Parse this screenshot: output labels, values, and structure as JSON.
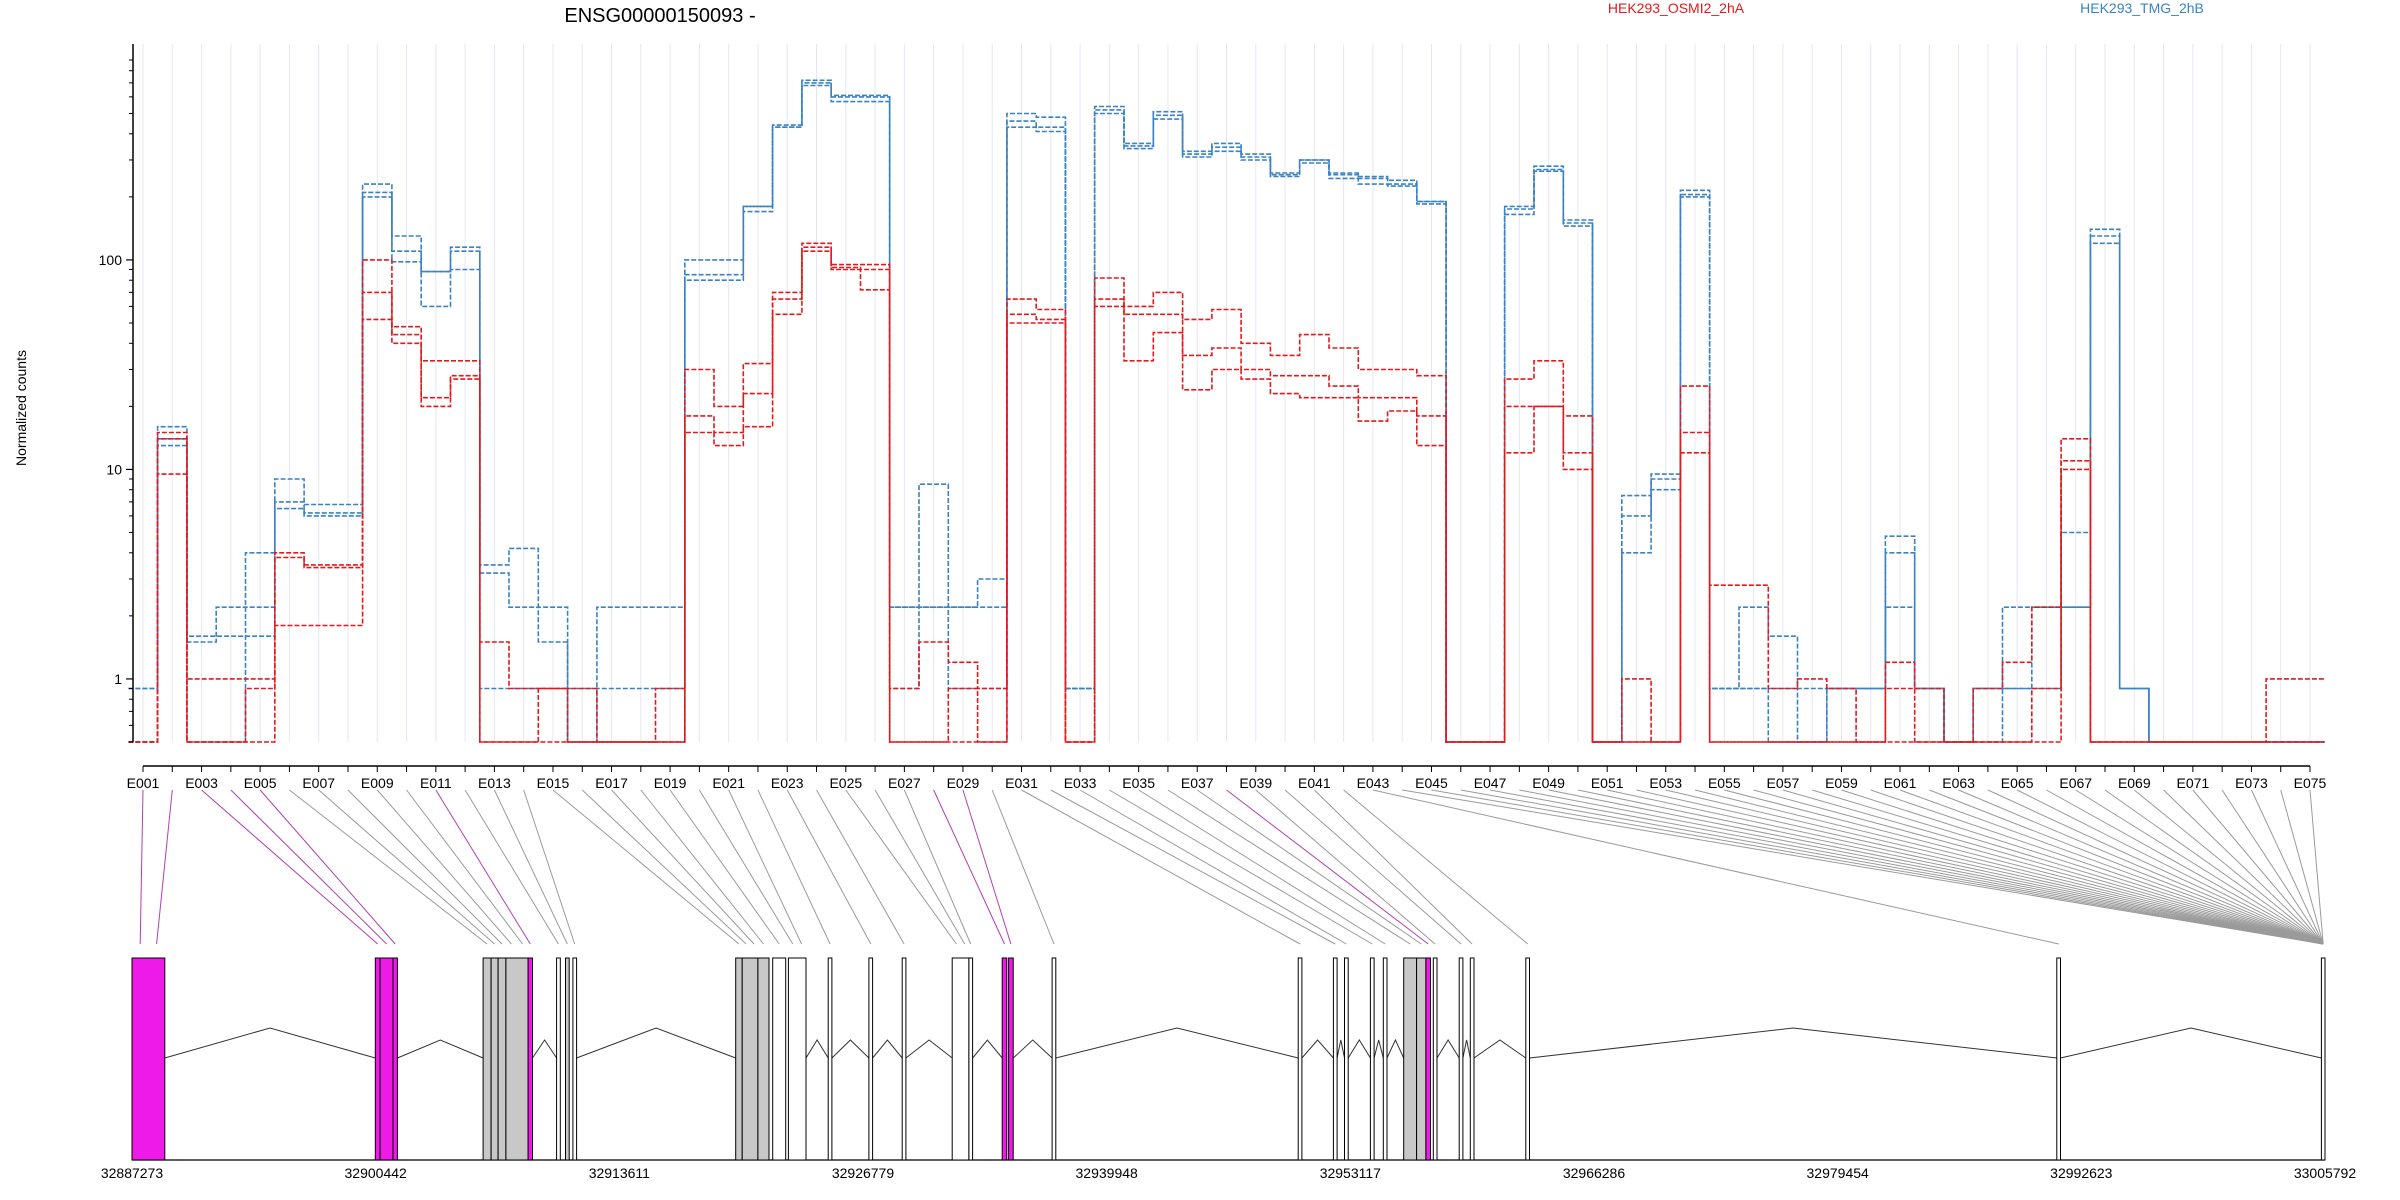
{
  "title": "ENSG00000150093 -",
  "ylabel": "Normalized counts",
  "legend": [
    {
      "name": "HEK293_OSMI2_2hA",
      "color": "#e31a1c"
    },
    {
      "name": "HEK293_TMG_2hB",
      "color": "#3a82c4"
    }
  ],
  "colors": {
    "exon_highlight": "#ee1be8",
    "exon_gray": "#c8c8c8",
    "connector_gray": "#9a9a9a",
    "connector_magenta": "#b040b0",
    "grid": "#e6e6f2"
  },
  "chart_data": {
    "type": "line",
    "title": "ENSG00000150093 -",
    "xlabel": "",
    "ylabel": "Normalized counts",
    "y_scale": "log",
    "ylim": [
      0.5,
      900
    ],
    "y_ticks": [
      1,
      10,
      100
    ],
    "y_tick_labels": [
      "1",
      "10",
      "100"
    ],
    "grid": "vertical, per exon",
    "legend_position": "top",
    "categories": [
      "E001",
      "E002",
      "E003",
      "E004",
      "E005",
      "E006",
      "E007",
      "E008",
      "E009",
      "E010",
      "E011",
      "E012",
      "E013",
      "E014",
      "E015",
      "E016",
      "E017",
      "E018",
      "E019",
      "E020",
      "E021",
      "E022",
      "E023",
      "E024",
      "E025",
      "E026",
      "E027",
      "E028",
      "E029",
      "E030",
      "E031",
      "E032",
      "E033",
      "E034",
      "E035",
      "E036",
      "E037",
      "E038",
      "E039",
      "E040",
      "E041",
      "E042",
      "E043",
      "E044",
      "E045",
      "E046",
      "E047",
      "E048",
      "E049",
      "E050",
      "E051",
      "E052",
      "E053",
      "E054",
      "E055",
      "E056",
      "E057",
      "E058",
      "E059",
      "E060",
      "E061",
      "E062",
      "E063",
      "E064",
      "E065",
      "E066",
      "E067",
      "E068",
      "E069",
      "E070",
      "E071",
      "E072",
      "E073",
      "E074",
      "E075"
    ],
    "x_tick_labels": [
      "E001",
      "E003",
      "E005",
      "E007",
      "E009",
      "E011",
      "E013",
      "E015",
      "E017",
      "E019",
      "E021",
      "E023",
      "E025",
      "E027",
      "E029",
      "E031",
      "E033",
      "E035",
      "E037",
      "E039",
      "E041",
      "E043",
      "E045",
      "E047",
      "E049",
      "E051",
      "E053",
      "E055",
      "E057",
      "E059",
      "E061",
      "E063",
      "E065",
      "E067",
      "E069",
      "E071",
      "E073",
      "E075"
    ],
    "series": [
      {
        "name": "HEK293_TMG_2hB",
        "color": "#3a82c4",
        "values": [
          0.9,
          14,
          1.5,
          2.2,
          2.2,
          6.5,
          6.2,
          6.2,
          230,
          98,
          88,
          115,
          3.2,
          2.2,
          2.2,
          0.9,
          0.9,
          0.9,
          0.9,
          100,
          100,
          180,
          430,
          720,
          600,
          600,
          2.2,
          2.2,
          2.2,
          3.0,
          500,
          480,
          0.9,
          540,
          360,
          510,
          330,
          360,
          320,
          260,
          300,
          260,
          250,
          240,
          190,
          0.5,
          0.5,
          180,
          280,
          150,
          0.5,
          7.5,
          9.5,
          215,
          0.9,
          0.9,
          0.9,
          0.9,
          0.9,
          0.9,
          4.8,
          0.9,
          0.5,
          0.9,
          2.2,
          2.2,
          5.0,
          140,
          0.9,
          0.5,
          0.5,
          0.5,
          0.5,
          0.5,
          0.5
        ]
      },
      {
        "name": "HEK293_TMG_2hB",
        "color": "#3a82c4",
        "values": [
          0.9,
          16,
          1.6,
          1.6,
          1.6,
          7.0,
          6.0,
          6.0,
          210,
          130,
          60,
          90,
          0.9,
          0.9,
          0.9,
          0.5,
          0.5,
          0.5,
          0.5,
          85,
          85,
          170,
          430,
          680,
          570,
          570,
          0.9,
          8.5,
          0.9,
          0.9,
          460,
          430,
          0.9,
          520,
          340,
          470,
          310,
          330,
          300,
          250,
          290,
          245,
          230,
          225,
          185,
          0.5,
          0.5,
          165,
          270,
          145,
          0.5,
          6.0,
          8.0,
          200,
          0.9,
          2.2,
          1.6,
          0.5,
          0.9,
          0.9,
          2.2,
          0.9,
          0.5,
          0.9,
          0.9,
          0.9,
          2.2,
          120,
          0.9,
          0.5,
          0.5,
          0.5,
          0.5,
          0.5,
          0.5
        ]
      },
      {
        "name": "HEK293_TMG_2hB",
        "color": "#3a82c4",
        "values": [
          0.5,
          13,
          0.5,
          0.5,
          4.0,
          9.0,
          6.8,
          6.8,
          200,
          110,
          88,
          110,
          3.5,
          4.2,
          1.5,
          0.5,
          2.2,
          2.2,
          2.2,
          80,
          80,
          180,
          440,
          700,
          610,
          610,
          2.2,
          2.2,
          2.2,
          2.2,
          430,
          410,
          0.9,
          500,
          350,
          490,
          320,
          345,
          310,
          255,
          300,
          255,
          245,
          230,
          190,
          0.5,
          0.5,
          175,
          265,
          155,
          0.5,
          4.0,
          9.0,
          205,
          0.9,
          0.9,
          0.5,
          0.5,
          0.9,
          0.9,
          4.0,
          0.9,
          0.5,
          0.5,
          0.9,
          2.2,
          2.2,
          130,
          0.9,
          0.5,
          0.5,
          0.5,
          0.5,
          0.5,
          0.5
        ]
      },
      {
        "name": "HEK293_OSMI2_2hA",
        "color": "#e31a1c",
        "values": [
          0.5,
          9.5,
          1.0,
          1.0,
          1.0,
          3.8,
          3.5,
          3.5,
          100,
          48,
          33,
          33,
          1.5,
          0.9,
          0.9,
          0.9,
          0.5,
          0.5,
          0.9,
          30,
          20,
          32,
          70,
          120,
          90,
          90,
          0.9,
          1.5,
          1.2,
          0.9,
          65,
          58,
          0.5,
          82,
          60,
          70,
          52,
          58,
          40,
          35,
          44,
          38,
          30,
          30,
          28,
          0.5,
          0.5,
          27,
          33,
          18,
          0.5,
          1.0,
          0.5,
          25,
          2.8,
          2.8,
          0.9,
          1.0,
          0.9,
          0.5,
          1.2,
          0.9,
          0.5,
          0.9,
          1.2,
          2.2,
          14,
          0.5,
          0.5,
          0.5,
          0.5,
          0.5,
          0.5,
          1.0,
          1.0
        ]
      },
      {
        "name": "HEK293_OSMI2_2hA",
        "color": "#e31a1c",
        "values": [
          0.5,
          15,
          0.5,
          0.5,
          0.9,
          4.0,
          3.4,
          3.4,
          70,
          40,
          22,
          27,
          0.5,
          0.5,
          0.9,
          0.5,
          0.5,
          0.5,
          0.5,
          18,
          15,
          23,
          55,
          110,
          95,
          95,
          0.5,
          0.5,
          0.9,
          0.5,
          55,
          52,
          0.5,
          65,
          55,
          55,
          35,
          38,
          30,
          28,
          28,
          25,
          22,
          22,
          18,
          0.5,
          0.5,
          12,
          20,
          12,
          0.5,
          0.5,
          0.5,
          15,
          0.5,
          0.5,
          0.5,
          0.5,
          0.5,
          0.5,
          0.9,
          0.5,
          0.5,
          0.5,
          0.5,
          0.9,
          11,
          0.5,
          0.5,
          0.5,
          0.5,
          0.5,
          0.5,
          0.5,
          0.5
        ]
      },
      {
        "name": "HEK293_OSMI2_2hA",
        "color": "#e31a1c",
        "values": [
          0.5,
          14,
          0.5,
          0.5,
          0.5,
          1.8,
          1.8,
          1.8,
          52,
          44,
          20,
          28,
          0.5,
          0.5,
          0.5,
          0.5,
          0.5,
          0.5,
          0.5,
          15,
          13,
          16,
          65,
          115,
          92,
          72,
          0.5,
          0.5,
          0.5,
          0.5,
          50,
          50,
          0.5,
          60,
          33,
          45,
          24,
          30,
          27,
          23,
          22,
          22,
          17,
          19,
          13,
          0.5,
          0.5,
          20,
          20,
          10,
          0.5,
          0.5,
          0.5,
          12,
          0.5,
          0.5,
          0.5,
          0.5,
          0.5,
          0.5,
          0.5,
          0.5,
          0.5,
          0.5,
          0.5,
          0.5,
          10,
          0.5,
          0.5,
          0.5,
          0.5,
          0.5,
          0.5,
          0.5,
          0.5
        ]
      }
    ]
  },
  "gene_model": {
    "coordinates": [
      "32887273",
      "32900442",
      "32913611",
      "32926779",
      "32939948",
      "32953117",
      "32966286",
      "32979454",
      "32992623",
      "33005792"
    ],
    "genomic_range": [
      32887273,
      33005792
    ],
    "exons": [
      {
        "start": 32887273,
        "end": 32889045,
        "fill": "magenta"
      },
      {
        "start": 32900420,
        "end": 32900680,
        "fill": "magenta"
      },
      {
        "start": 32900680,
        "end": 32901380,
        "fill": "magenta"
      },
      {
        "start": 32901380,
        "end": 32901620,
        "fill": "magenta"
      },
      {
        "start": 32906250,
        "end": 32906680,
        "fill": "gray"
      },
      {
        "start": 32906680,
        "end": 32907060,
        "fill": "gray"
      },
      {
        "start": 32907060,
        "end": 32907480,
        "fill": "gray"
      },
      {
        "start": 32907480,
        "end": 32908680,
        "fill": "gray"
      },
      {
        "start": 32908680,
        "end": 32908920,
        "fill": "magenta"
      },
      {
        "start": 32910220,
        "end": 32910420,
        "fill": "white"
      },
      {
        "start": 32910700,
        "end": 32910900,
        "fill": "gray"
      },
      {
        "start": 32911100,
        "end": 32911300,
        "fill": "white"
      },
      {
        "start": 32919900,
        "end": 32920250,
        "fill": "gray"
      },
      {
        "start": 32920250,
        "end": 32921100,
        "fill": "gray"
      },
      {
        "start": 32921100,
        "end": 32921700,
        "fill": "gray"
      },
      {
        "start": 32921900,
        "end": 32922600,
        "fill": "white"
      },
      {
        "start": 32922750,
        "end": 32923700,
        "fill": "white"
      },
      {
        "start": 32924900,
        "end": 32925100,
        "fill": "white"
      },
      {
        "start": 32927100,
        "end": 32927300,
        "fill": "white"
      },
      {
        "start": 32928900,
        "end": 32929100,
        "fill": "white"
      },
      {
        "start": 32931600,
        "end": 32932500,
        "fill": "white"
      },
      {
        "start": 32932500,
        "end": 32932700,
        "fill": "white"
      },
      {
        "start": 32934300,
        "end": 32934550,
        "fill": "magenta"
      },
      {
        "start": 32934650,
        "end": 32934900,
        "fill": "magenta"
      },
      {
        "start": 32937000,
        "end": 32937200,
        "fill": "white"
      },
      {
        "start": 32950300,
        "end": 32950500,
        "fill": "white"
      },
      {
        "start": 32952200,
        "end": 32952400,
        "fill": "white"
      },
      {
        "start": 32952800,
        "end": 32953000,
        "fill": "white"
      },
      {
        "start": 32954200,
        "end": 32954400,
        "fill": "white"
      },
      {
        "start": 32954900,
        "end": 32955100,
        "fill": "white"
      },
      {
        "start": 32956000,
        "end": 32956700,
        "fill": "gray"
      },
      {
        "start": 32956700,
        "end": 32957200,
        "fill": "gray"
      },
      {
        "start": 32957200,
        "end": 32957450,
        "fill": "magenta"
      },
      {
        "start": 32957600,
        "end": 32957800,
        "fill": "white"
      },
      {
        "start": 32959000,
        "end": 32959200,
        "fill": "white"
      },
      {
        "start": 32959600,
        "end": 32959800,
        "fill": "white"
      },
      {
        "start": 32962600,
        "end": 32962800,
        "fill": "white"
      },
      {
        "start": 32991300,
        "end": 32991500,
        "fill": "white"
      },
      {
        "start": 33005600,
        "end": 33005792,
        "fill": "white"
      }
    ]
  }
}
